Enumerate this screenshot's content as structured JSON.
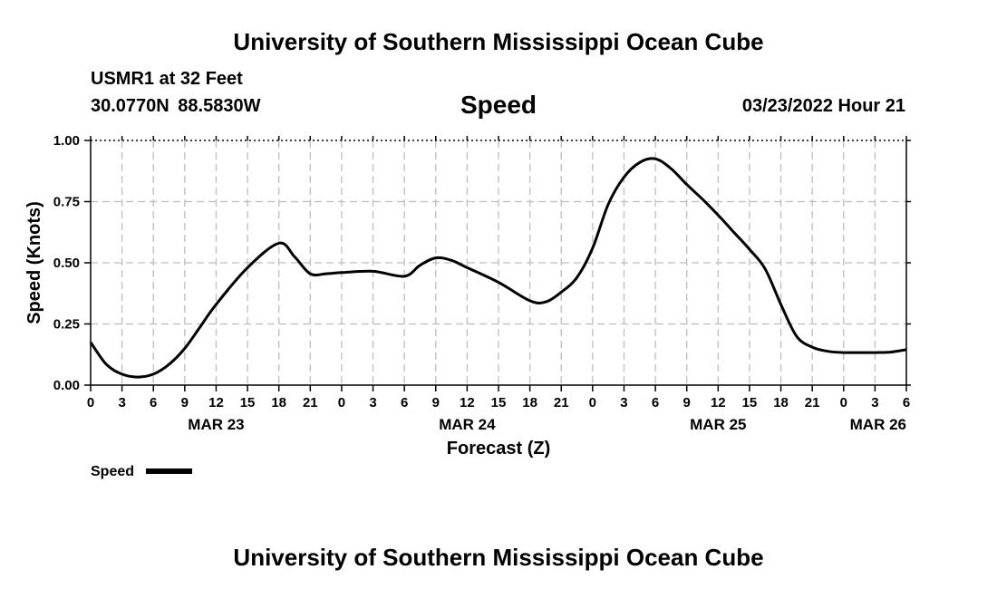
{
  "header": {
    "title": "University of Southern Mississippi Ocean Cube",
    "station": "USMR1 at 32 Feet",
    "coordinates": "30.0770N  88.5830W",
    "chart_title": "Speed",
    "date": "03/23/2022 Hour 21"
  },
  "footer": {
    "title": "University of Southern Mississippi Ocean Cube"
  },
  "chart_data": {
    "type": "line",
    "title": "Speed",
    "xlabel": "Forecast (Z)",
    "ylabel": "Speed (Knots)",
    "ylim": [
      0,
      1
    ],
    "xlim": [
      0,
      78
    ],
    "grid": true,
    "legend_position": "bottom-left",
    "y_ticks": [
      "0.00",
      "0.25",
      "0.50",
      "0.75",
      "1.00"
    ],
    "x_tick_labels": [
      "0",
      "3",
      "6",
      "9",
      "12",
      "15",
      "18",
      "21",
      "0",
      "3",
      "6",
      "9",
      "12",
      "15",
      "18",
      "21",
      "0",
      "3",
      "6",
      "9",
      "12",
      "15",
      "18",
      "21",
      "0",
      "3",
      "6"
    ],
    "date_labels": [
      {
        "label": "MAR 23",
        "at": 12
      },
      {
        "label": "MAR 24",
        "at": 36
      },
      {
        "label": "MAR 25",
        "at": 60
      },
      {
        "label": "MAR 26",
        "at": 78
      }
    ],
    "series": [
      {
        "name": "Speed",
        "color": "#000000",
        "x": [
          0,
          1.5,
          3,
          4.5,
          6,
          7.5,
          9,
          10.5,
          12,
          15,
          18,
          19.5,
          21,
          22.5,
          24,
          27,
          30,
          31.5,
          33,
          34.5,
          36,
          39,
          42,
          43.5,
          45,
          46.5,
          48,
          49.5,
          51,
          52.5,
          54,
          55.5,
          57,
          58.5,
          60,
          61.5,
          63,
          64.5,
          66,
          67.5,
          69,
          70.5,
          72,
          73.5,
          75,
          76.5,
          78
        ],
        "y": [
          0.175,
          0.085,
          0.045,
          0.033,
          0.045,
          0.085,
          0.15,
          0.24,
          0.33,
          0.48,
          0.58,
          0.525,
          0.455,
          0.455,
          0.46,
          0.465,
          0.445,
          0.49,
          0.52,
          0.51,
          0.48,
          0.42,
          0.345,
          0.34,
          0.38,
          0.44,
          0.56,
          0.74,
          0.85,
          0.91,
          0.925,
          0.885,
          0.82,
          0.76,
          0.695,
          0.625,
          0.555,
          0.475,
          0.33,
          0.2,
          0.155,
          0.138,
          0.133,
          0.133,
          0.133,
          0.135,
          0.145
        ]
      }
    ]
  }
}
